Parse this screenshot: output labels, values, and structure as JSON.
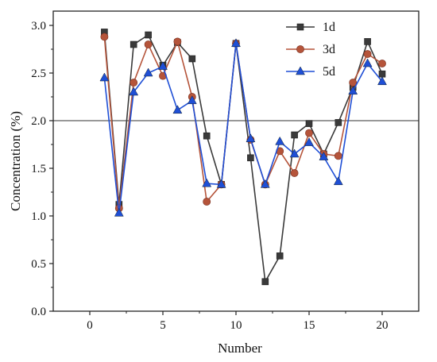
{
  "chart_data": {
    "type": "line",
    "title": "",
    "xlabel": "Number",
    "ylabel": "Concentration (%)",
    "xlim": [
      -2.5,
      22.5
    ],
    "ylim": [
      0,
      3.15
    ],
    "x_ticks": [
      0,
      5,
      10,
      15,
      20
    ],
    "y_ticks": [
      0.0,
      0.5,
      1.0,
      1.5,
      2.0,
      2.5,
      3.0
    ],
    "x_tick_labels": [
      "0",
      "5",
      "10",
      "15",
      "20"
    ],
    "y_tick_labels": [
      "0.0",
      "0.5",
      "1.0",
      "1.5",
      "2.0",
      "2.5",
      "3.0"
    ],
    "reference_line_y": 2.0,
    "grid": false,
    "legend_position": "top-right",
    "x": [
      1,
      2,
      3,
      4,
      5,
      6,
      7,
      8,
      9,
      10,
      11,
      12,
      13,
      14,
      15,
      16,
      17,
      18,
      19,
      20
    ],
    "series": [
      {
        "name": "1d",
        "color": "#3a3a3a",
        "marker": "square",
        "values": [
          2.93,
          1.12,
          2.8,
          2.9,
          2.58,
          2.82,
          2.65,
          1.84,
          1.33,
          2.81,
          1.61,
          0.31,
          0.58,
          1.85,
          1.97,
          1.65,
          1.98,
          2.35,
          2.83,
          2.49
        ]
      },
      {
        "name": "3d",
        "color": "#b5543a",
        "marker": "circle",
        "values": [
          2.88,
          1.08,
          2.4,
          2.8,
          2.47,
          2.83,
          2.25,
          1.15,
          1.33,
          2.81,
          1.8,
          1.33,
          1.68,
          1.45,
          1.87,
          1.65,
          1.63,
          2.4,
          2.7,
          2.6
        ]
      },
      {
        "name": "5d",
        "color": "#1f4fd6",
        "marker": "triangle",
        "values": [
          2.45,
          1.03,
          2.3,
          2.5,
          2.57,
          2.11,
          2.21,
          1.34,
          1.33,
          2.81,
          1.81,
          1.33,
          1.78,
          1.65,
          1.77,
          1.62,
          1.36,
          2.31,
          2.6,
          2.41
        ]
      }
    ]
  }
}
